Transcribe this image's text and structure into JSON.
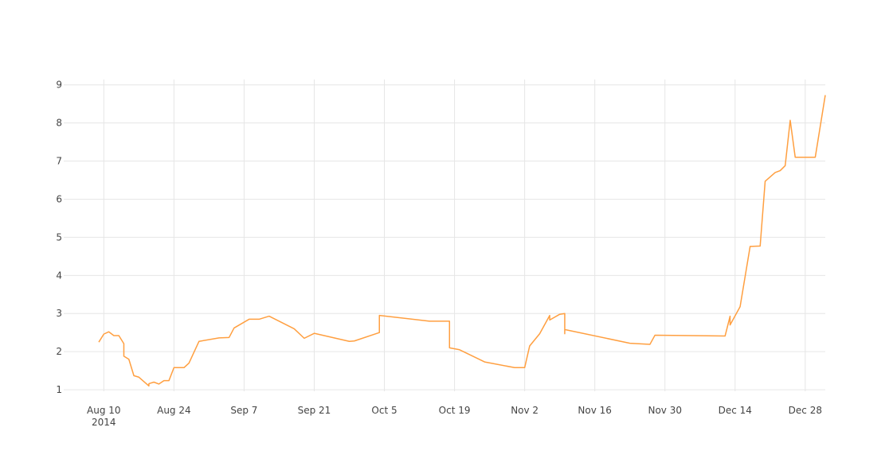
{
  "chart_data": {
    "type": "line",
    "x": [
      "2014-08-09",
      "2014-08-10",
      "2014-08-11",
      "2014-08-12",
      "2014-08-13",
      "2014-08-14",
      "2014-08-14",
      "2014-08-15",
      "2014-08-16",
      "2014-08-17",
      "2014-08-19",
      "2014-08-19",
      "2014-08-20",
      "2014-08-21",
      "2014-08-22",
      "2014-08-23",
      "2014-08-24",
      "2014-08-26",
      "2014-08-27",
      "2014-08-29",
      "2014-09-02",
      "2014-09-04",
      "2014-09-05",
      "2014-09-08",
      "2014-09-10",
      "2014-09-12",
      "2014-09-17",
      "2014-09-19",
      "2014-09-21",
      "2014-09-28",
      "2014-09-29",
      "2014-10-04",
      "2014-10-04",
      "2014-10-14",
      "2014-10-18",
      "2014-10-18",
      "2014-10-20",
      "2014-10-25",
      "2014-10-31",
      "2014-11-02",
      "2014-11-03",
      "2014-11-05",
      "2014-11-07",
      "2014-11-07",
      "2014-11-09",
      "2014-11-10",
      "2014-11-10",
      "2014-11-10",
      "2014-11-23",
      "2014-11-27",
      "2014-11-28",
      "2014-12-12",
      "2014-12-13",
      "2014-12-13",
      "2014-12-15",
      "2014-12-17",
      "2014-12-19",
      "2014-12-20",
      "2014-12-22",
      "2014-12-23",
      "2014-12-24",
      "2014-12-25",
      "2014-12-26",
      "2014-12-30",
      "2015-01-01"
    ],
    "series": [
      {
        "color": "#ff9f40",
        "values": [
          2.25,
          2.46,
          2.52,
          2.42,
          2.42,
          2.21,
          1.88,
          1.8,
          1.37,
          1.33,
          1.1,
          1.16,
          1.2,
          1.15,
          1.24,
          1.24,
          1.58,
          1.58,
          1.7,
          2.27,
          2.36,
          2.37,
          2.62,
          2.85,
          2.85,
          2.93,
          2.6,
          2.35,
          2.48,
          2.27,
          2.28,
          2.5,
          2.95,
          2.8,
          2.8,
          2.1,
          2.05,
          1.73,
          1.58,
          1.58,
          2.15,
          2.47,
          2.95,
          2.83,
          2.98,
          3.0,
          2.47,
          2.58,
          2.22,
          2.19,
          2.43,
          2.41,
          2.93,
          2.7,
          3.18,
          4.76,
          4.77,
          6.47,
          6.7,
          6.75,
          6.88,
          8.07,
          7.1,
          7.1,
          8.73
        ]
      }
    ],
    "xlim": [
      "2014-08-02",
      "2015-01-01"
    ],
    "xticks": [
      {
        "value": "2014-08-10",
        "label": "Aug 10\n2014"
      },
      {
        "value": "2014-08-24",
        "label": "Aug 24"
      },
      {
        "value": "2014-09-07",
        "label": "Sep 7"
      },
      {
        "value": "2014-09-21",
        "label": "Sep 21"
      },
      {
        "value": "2014-10-05",
        "label": "Oct 5"
      },
      {
        "value": "2014-10-19",
        "label": "Oct 19"
      },
      {
        "value": "2014-11-02",
        "label": "Nov 2"
      },
      {
        "value": "2014-11-16",
        "label": "Nov 16"
      },
      {
        "value": "2014-11-30",
        "label": "Nov 30"
      },
      {
        "value": "2014-12-14",
        "label": "Dec 14"
      },
      {
        "value": "2014-12-28",
        "label": "Dec 28"
      }
    ],
    "ylim": [
      0.96,
      9.14
    ],
    "yticks": [
      1,
      2,
      3,
      4,
      5,
      6,
      7,
      8,
      9
    ],
    "grid": true
  }
}
